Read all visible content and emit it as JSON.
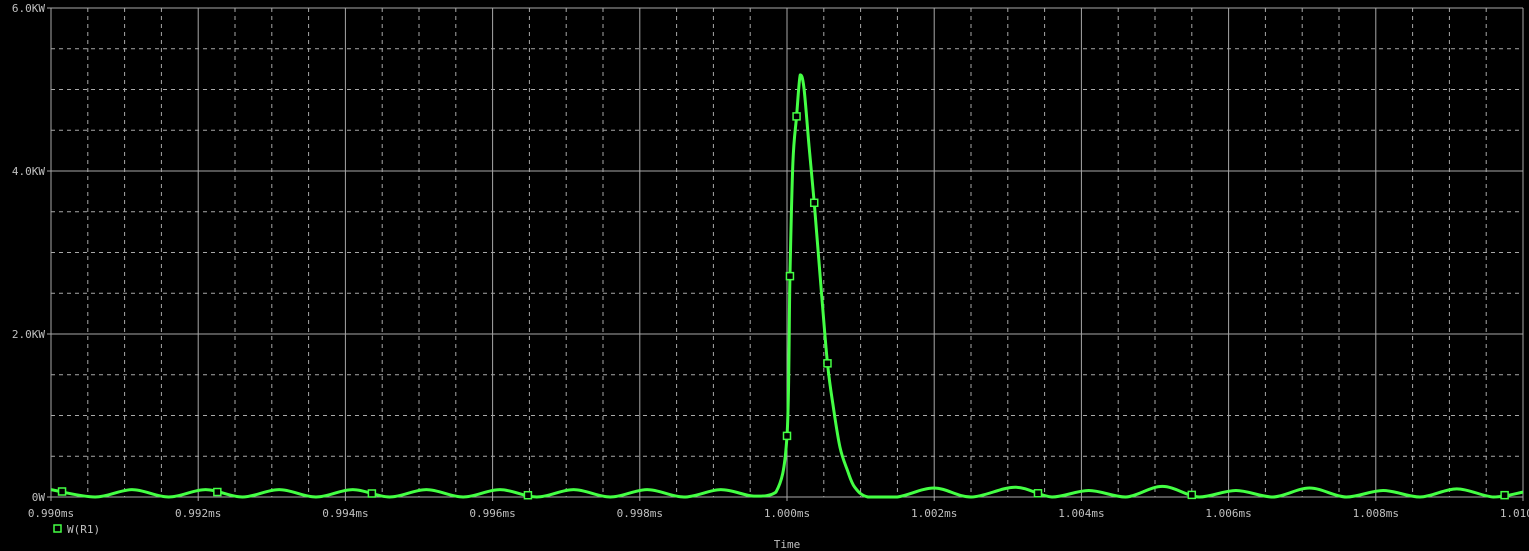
{
  "chart_data": {
    "type": "line",
    "title": "",
    "xlabel": "Time",
    "ylabel": "",
    "xlim": [
      0.99,
      1.01
    ],
    "x_unit": "ms",
    "ylim": [
      0,
      6000
    ],
    "y_unit": "W",
    "grid": true,
    "legend_position": "bottom-left",
    "x_tick_labels": [
      "0.990ms",
      "0.992ms",
      "0.994ms",
      "0.996ms",
      "0.998ms",
      "1.000ms",
      "1.002ms",
      "1.004ms",
      "1.006ms",
      "1.008ms",
      "1.010ms"
    ],
    "x_ticks": [
      0.99,
      0.992,
      0.994,
      0.996,
      0.998,
      1.0,
      1.002,
      1.004,
      1.006,
      1.008,
      1.01
    ],
    "y_tick_labels": [
      "0W",
      "2.0KW",
      "4.0KW",
      "6.0KW"
    ],
    "y_ticks": [
      0,
      2000,
      4000,
      6000
    ],
    "colors": {
      "background": "#000000",
      "grid": "#a8a8a8",
      "trace": "#44ff44",
      "text": "#c0c0c0"
    },
    "series": [
      {
        "name": "W(R1)",
        "marker": "square",
        "points": [
          [
            0.99,
            90
          ],
          [
            0.9906,
            0
          ],
          [
            0.9911,
            90
          ],
          [
            0.9916,
            0
          ],
          [
            0.9921,
            90
          ],
          [
            0.9926,
            0
          ],
          [
            0.9931,
            90
          ],
          [
            0.9936,
            0
          ],
          [
            0.9941,
            90
          ],
          [
            0.9946,
            0
          ],
          [
            0.9951,
            90
          ],
          [
            0.9956,
            0
          ],
          [
            0.9961,
            90
          ],
          [
            0.9966,
            0
          ],
          [
            0.9971,
            90
          ],
          [
            0.9976,
            0
          ],
          [
            0.9981,
            90
          ],
          [
            0.9986,
            0
          ],
          [
            0.9991,
            90
          ],
          [
            0.99955,
            10
          ],
          [
            0.99985,
            60
          ],
          [
            1.0,
            750
          ],
          [
            1.00004,
            2710
          ],
          [
            1.00008,
            4100
          ],
          [
            1.00013,
            4670
          ],
          [
            1.00018,
            5180
          ],
          [
            1.00023,
            5020
          ],
          [
            1.0003,
            4300
          ],
          [
            1.00037,
            3610
          ],
          [
            1.00046,
            2600
          ],
          [
            1.00055,
            1640
          ],
          [
            1.00063,
            1100
          ],
          [
            1.00072,
            610
          ],
          [
            1.00082,
            330
          ],
          [
            1.00092,
            120
          ],
          [
            1.0011,
            0
          ],
          [
            1.0015,
            0
          ],
          [
            1.002,
            110
          ],
          [
            1.0025,
            0
          ],
          [
            1.0031,
            120
          ],
          [
            1.0036,
            0
          ],
          [
            1.0041,
            80
          ],
          [
            1.0046,
            0
          ],
          [
            1.0051,
            130
          ],
          [
            1.0056,
            0
          ],
          [
            1.0061,
            80
          ],
          [
            1.0066,
            0
          ],
          [
            1.0071,
            110
          ],
          [
            1.0076,
            0
          ],
          [
            1.0081,
            80
          ],
          [
            1.0086,
            0
          ],
          [
            1.0091,
            100
          ],
          [
            1.0096,
            0
          ],
          [
            1.01,
            60
          ]
        ],
        "marker_times": [
          0.99015,
          0.99226,
          0.99436,
          0.99648,
          1.0,
          1.00004,
          1.00013,
          1.00037,
          1.00055,
          1.00341,
          1.0055,
          1.00975
        ]
      }
    ]
  }
}
